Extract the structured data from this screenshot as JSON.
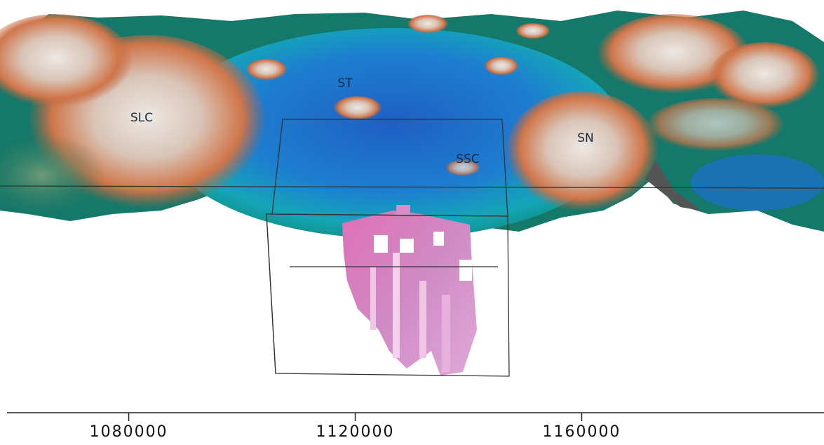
{
  "labels": [
    "SLC",
    "ST",
    "SSC",
    "SN"
  ],
  "axis": {
    "xlim": [
      1058500,
      1202800
    ],
    "xticks": [
      1080000,
      1120000,
      1160000
    ]
  }
}
